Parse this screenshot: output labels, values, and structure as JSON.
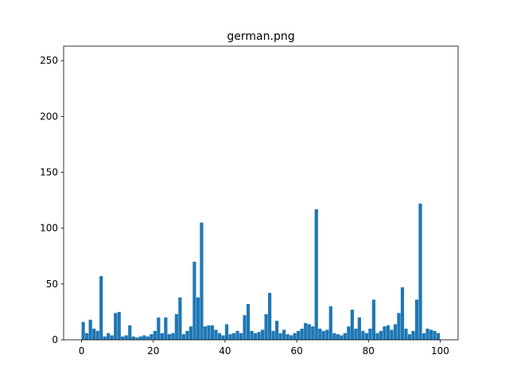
{
  "chart_data": {
    "type": "histogram",
    "title": "german.png",
    "bins": [
      0,
      1,
      2,
      3,
      4,
      5,
      6,
      7,
      8,
      9,
      10,
      11,
      12,
      13,
      14,
      15,
      16,
      17,
      18,
      19,
      20,
      21,
      22,
      23,
      24,
      25,
      26,
      27,
      28,
      29,
      30,
      31,
      32,
      33,
      34,
      35,
      36,
      37,
      38,
      39,
      40,
      41,
      42,
      43,
      44,
      45,
      46,
      47,
      48,
      49,
      50,
      51,
      52,
      53,
      54,
      55,
      56,
      57,
      58,
      59,
      60,
      61,
      62,
      63,
      64,
      65,
      66,
      67,
      68,
      69,
      70,
      71,
      72,
      73,
      74,
      75,
      76,
      77,
      78,
      79,
      80,
      81,
      82,
      83,
      84,
      85,
      86,
      87,
      88,
      89,
      90,
      91,
      92,
      93,
      94,
      95,
      96,
      97,
      98,
      99,
      100
    ],
    "values": [
      16,
      6,
      18,
      10,
      8,
      57,
      3,
      6,
      4,
      24,
      25,
      3,
      4,
      13,
      3,
      2,
      3,
      4,
      3,
      5,
      8,
      20,
      6,
      20,
      5,
      6,
      23,
      38,
      5,
      8,
      12,
      70,
      38,
      105,
      12,
      13,
      13,
      9,
      6,
      4,
      14,
      5,
      6,
      8,
      6,
      22,
      32,
      8,
      6,
      7,
      9,
      23,
      42,
      8,
      17,
      6,
      9,
      5,
      4,
      6,
      8,
      10,
      15,
      14,
      12,
      117,
      10,
      8,
      9,
      30,
      6,
      5,
      4,
      6,
      12,
      27,
      10,
      20,
      8,
      6,
      10,
      36,
      6,
      8,
      12,
      13,
      9,
      14,
      24,
      47,
      10,
      5,
      8,
      36,
      122,
      6,
      10,
      9,
      8,
      6
    ],
    "color": "#1f77b4",
    "xlim": [
      -5,
      105
    ],
    "xticks": [
      0,
      20,
      40,
      60,
      80,
      100
    ],
    "ylim": [
      0,
      263
    ],
    "yticks": [
      0,
      50,
      100,
      150,
      200,
      250
    ]
  }
}
